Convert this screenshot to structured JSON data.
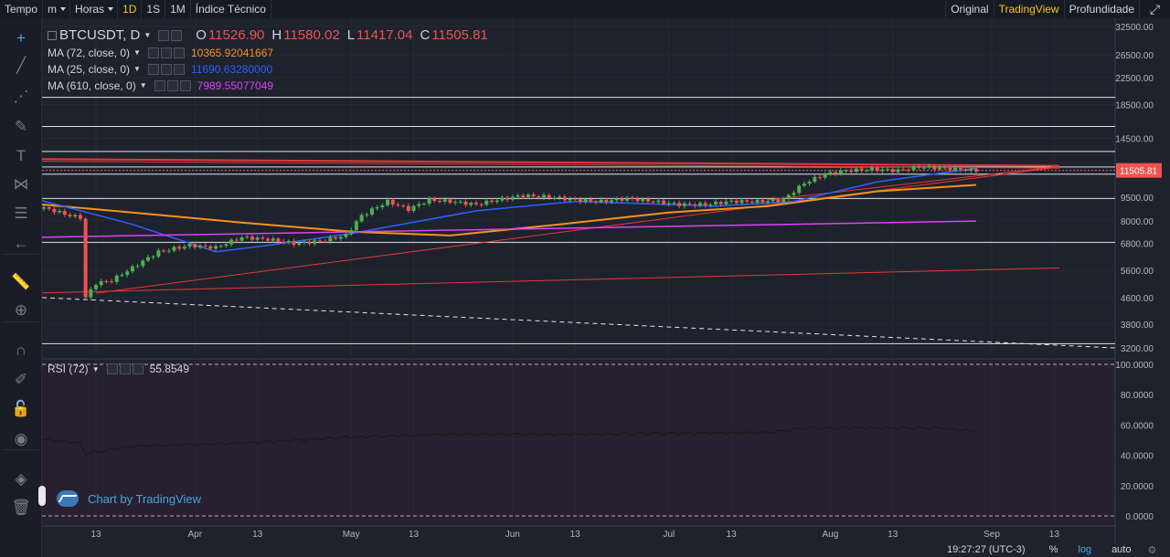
{
  "toolbar": {
    "items": [
      {
        "label": "Tempo",
        "type": "label"
      },
      {
        "label": "m",
        "type": "select"
      },
      {
        "label": "Horas",
        "type": "select"
      },
      {
        "label": "1D",
        "type": "interval",
        "active": true
      },
      {
        "label": "1S",
        "type": "interval"
      },
      {
        "label": "1M",
        "type": "interval"
      },
      {
        "label": "Índice Técnico",
        "type": "button"
      }
    ],
    "views": [
      {
        "label": "Original"
      },
      {
        "label": "TradingView",
        "active": true
      },
      {
        "label": "Profundidade"
      }
    ],
    "fullscreen_icon": "expand-icon"
  },
  "tools": [
    {
      "icon": "crosshair-icon",
      "glyph": "+"
    },
    {
      "icon": "trend-line-icon",
      "glyph": "╱"
    },
    {
      "icon": "pitchfork-icon",
      "glyph": "⋰"
    },
    {
      "icon": "brush-icon",
      "glyph": "✎"
    },
    {
      "icon": "text-icon",
      "glyph": "T"
    },
    {
      "icon": "pattern-icon",
      "glyph": "⋈"
    },
    {
      "icon": "fib-icon",
      "glyph": "☰"
    },
    {
      "icon": "back-arrow-icon",
      "glyph": "←"
    },
    {
      "icon": "ruler-icon",
      "glyph": "📏"
    },
    {
      "icon": "zoom-icon",
      "glyph": "⊕"
    },
    {
      "icon": "magnet-icon",
      "glyph": "∩"
    },
    {
      "icon": "lock-draw-icon",
      "glyph": "✐"
    },
    {
      "icon": "lock-icon",
      "glyph": "🔓"
    },
    {
      "icon": "eye-icon",
      "glyph": "◉"
    },
    {
      "icon": "layers-icon",
      "glyph": "◈"
    },
    {
      "icon": "trash-icon",
      "glyph": "🗑"
    }
  ],
  "legend": {
    "symbol": "BTCUSDT, D",
    "ohlc": [
      {
        "k": "O",
        "v": "11526.90"
      },
      {
        "k": "H",
        "v": "11580.02"
      },
      {
        "k": "L",
        "v": "11417.04"
      },
      {
        "k": "C",
        "v": "11505.81"
      }
    ],
    "indicators": [
      {
        "label": "MA (72, close, 0)",
        "value": "10365.92041667",
        "color": "#f7931a"
      },
      {
        "label": "MA (25, close, 0)",
        "value": "11690.63280000",
        "color": "#2962ff"
      },
      {
        "label": "MA (610, close, 0)",
        "value": "7989.55077049",
        "color": "#e040fb"
      }
    ],
    "rsi": {
      "label": "RSI (72)",
      "value": "55.8549"
    }
  },
  "watermark": "Chart by TradingView",
  "bottom": {
    "time": "19:27:27 (UTC-3)",
    "percent": "%",
    "log": "log",
    "auto": "auto",
    "settings_icon": "gear-icon"
  },
  "chart_data": {
    "type": "candlestick",
    "symbol": "BTCUSDT",
    "interval": "D",
    "y_scale": "log",
    "y_ticks": [
      32500,
      26500,
      22500,
      18500,
      14500,
      11505.81,
      9500,
      8000,
      6800,
      5600,
      4600,
      3800,
      3200
    ],
    "last_price": 11505.81,
    "x_ticks": [
      "13",
      "Apr",
      "13",
      "May",
      "13",
      "Jun",
      "13",
      "Jul",
      "13",
      "Aug",
      "13",
      "Sep",
      "13"
    ],
    "price_series": [
      {
        "date": "2018-03-01",
        "value": 8900
      },
      {
        "date": "2018-03-04",
        "value": 8700
      },
      {
        "date": "2018-03-08",
        "value": 8300
      },
      {
        "date": "2018-03-10",
        "value": 8200
      },
      {
        "date": "2018-03-11",
        "value": 4600
      },
      {
        "date": "2018-03-13",
        "value": 5100
      },
      {
        "date": "2018-03-16",
        "value": 5200
      },
      {
        "date": "2018-03-20",
        "value": 5700
      },
      {
        "date": "2018-03-25",
        "value": 6400
      },
      {
        "date": "2018-03-31",
        "value": 6700
      },
      {
        "date": "2018-04-05",
        "value": 6600
      },
      {
        "date": "2018-04-10",
        "value": 7100
      },
      {
        "date": "2018-04-15",
        "value": 7000
      },
      {
        "date": "2018-04-20",
        "value": 6800
      },
      {
        "date": "2018-04-25",
        "value": 6900
      },
      {
        "date": "2018-04-30",
        "value": 7200
      },
      {
        "date": "2018-05-03",
        "value": 8300
      },
      {
        "date": "2018-05-08",
        "value": 9200
      },
      {
        "date": "2018-05-12",
        "value": 8700
      },
      {
        "date": "2018-05-16",
        "value": 9300
      },
      {
        "date": "2018-05-20",
        "value": 9200
      },
      {
        "date": "2018-05-25",
        "value": 9000
      },
      {
        "date": "2018-05-29",
        "value": 9300
      },
      {
        "date": "2018-06-03",
        "value": 9600
      },
      {
        "date": "2018-06-08",
        "value": 9500
      },
      {
        "date": "2018-06-13",
        "value": 9300
      },
      {
        "date": "2018-06-18",
        "value": 9200
      },
      {
        "date": "2018-06-23",
        "value": 9400
      },
      {
        "date": "2018-06-28",
        "value": 9200
      },
      {
        "date": "2018-07-03",
        "value": 9000
      },
      {
        "date": "2018-07-08",
        "value": 9000
      },
      {
        "date": "2018-07-13",
        "value": 9200
      },
      {
        "date": "2018-07-18",
        "value": 9200
      },
      {
        "date": "2018-07-23",
        "value": 9300
      },
      {
        "date": "2018-07-27",
        "value": 10500
      },
      {
        "date": "2018-07-31",
        "value": 11200
      },
      {
        "date": "2018-08-04",
        "value": 11500
      },
      {
        "date": "2018-08-09",
        "value": 11600
      },
      {
        "date": "2018-08-14",
        "value": 11500
      },
      {
        "date": "2018-08-18",
        "value": 11800
      },
      {
        "date": "2018-08-22",
        "value": 11700
      },
      {
        "date": "2018-08-26",
        "value": 11600
      },
      {
        "date": "2018-08-29",
        "value": 11505.81
      }
    ],
    "series": [
      {
        "name": "MA (72, close, 0)",
        "color": "#f7931a",
        "values": [
          {
            "date": "2018-03-01",
            "value": 9050
          },
          {
            "date": "2018-03-20",
            "value": 8500
          },
          {
            "date": "2018-04-10",
            "value": 7900
          },
          {
            "date": "2018-05-01",
            "value": 7400
          },
          {
            "date": "2018-05-20",
            "value": 7200
          },
          {
            "date": "2018-06-10",
            "value": 7800
          },
          {
            "date": "2018-07-01",
            "value": 8500
          },
          {
            "date": "2018-07-20",
            "value": 8900
          },
          {
            "date": "2018-08-10",
            "value": 9900
          },
          {
            "date": "2018-08-29",
            "value": 10365.92
          }
        ]
      },
      {
        "name": "MA (25, close, 0)",
        "color": "#2962ff",
        "values": [
          {
            "date": "2018-03-01",
            "value": 9400
          },
          {
            "date": "2018-03-20",
            "value": 7800
          },
          {
            "date": "2018-04-05",
            "value": 6400
          },
          {
            "date": "2018-04-15",
            "value": 6700
          },
          {
            "date": "2018-05-01",
            "value": 7300
          },
          {
            "date": "2018-05-25",
            "value": 8600
          },
          {
            "date": "2018-06-13",
            "value": 9200
          },
          {
            "date": "2018-07-10",
            "value": 8900
          },
          {
            "date": "2018-07-25",
            "value": 9200
          },
          {
            "date": "2018-08-10",
            "value": 10600
          },
          {
            "date": "2018-08-29",
            "value": 11690.63
          }
        ]
      },
      {
        "name": "MA (610, close, 0)",
        "color": "#e040fb",
        "values": [
          {
            "date": "2018-03-01",
            "value": 7100
          },
          {
            "date": "2018-08-29",
            "value": 7989.55
          }
        ]
      }
    ],
    "horizontal_levels": [
      19500,
      15800,
      13200,
      11800,
      11200,
      9400,
      6850,
      3300
    ],
    "rsi": {
      "name": "RSI (72)",
      "last": 55.8549,
      "y_ticks": [
        100,
        80,
        60,
        40,
        20,
        0
      ],
      "values": [
        {
          "date": "2018-03-01",
          "value": 51
        },
        {
          "date": "2018-03-10",
          "value": 48
        },
        {
          "date": "2018-03-11",
          "value": 41
        },
        {
          "date": "2018-03-20",
          "value": 46
        },
        {
          "date": "2018-04-10",
          "value": 48
        },
        {
          "date": "2018-05-01",
          "value": 52
        },
        {
          "date": "2018-05-20",
          "value": 54
        },
        {
          "date": "2018-06-15",
          "value": 54
        },
        {
          "date": "2018-07-20",
          "value": 55
        },
        {
          "date": "2018-07-27",
          "value": 58
        },
        {
          "date": "2018-08-10",
          "value": 58
        },
        {
          "date": "2018-08-22",
          "value": 58
        },
        {
          "date": "2018-08-29",
          "value": 55.85
        }
      ]
    }
  }
}
